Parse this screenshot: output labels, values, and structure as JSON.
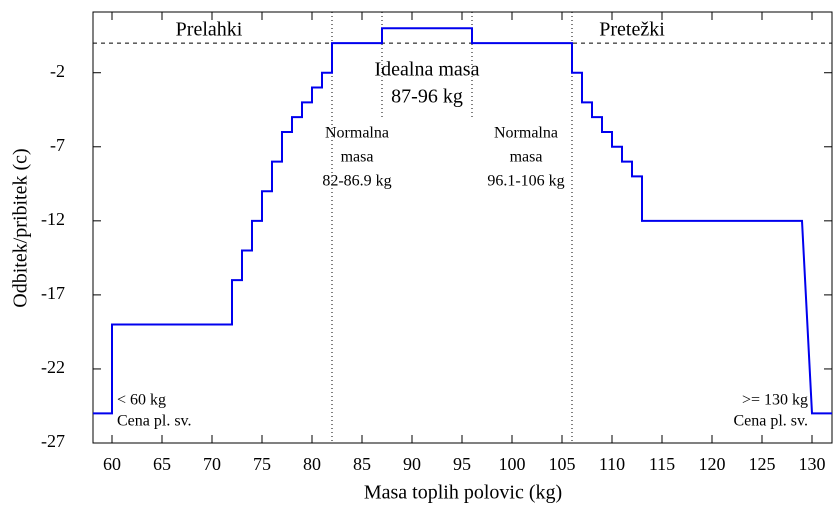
{
  "chart_data": {
    "type": "line",
    "x_label": "Masa toplih polovic (kg)",
    "y_label": "Odbitek/pribitek (c)",
    "series": [
      {
        "color": "#0000ee",
        "x": [
          58.1,
          60,
          60,
          72,
          72,
          73,
          73,
          74,
          74,
          75,
          75,
          76,
          76,
          77,
          77,
          78,
          78,
          79,
          79,
          80,
          80,
          81,
          81,
          82,
          82,
          87,
          87,
          96,
          96,
          106,
          106,
          107,
          107,
          108,
          108,
          109,
          109,
          110,
          110,
          111,
          111,
          112,
          112,
          113,
          113,
          129,
          130,
          132
        ],
        "values": [
          -25,
          -25,
          -19,
          -19,
          -16,
          -16,
          -14,
          -14,
          -12,
          -12,
          -10,
          -10,
          -8,
          -8,
          -6,
          -6,
          -5,
          -5,
          -4,
          -4,
          -3,
          -3,
          -2,
          -2,
          0,
          0,
          1,
          1,
          0,
          0,
          -2,
          -2,
          -4,
          -4,
          -5,
          -5,
          -6,
          -6,
          -7,
          -7,
          -8,
          -8,
          -9,
          -9,
          -12,
          -12,
          -25,
          -25
        ]
      }
    ],
    "xlim": [
      58.1,
      132
    ],
    "ylim": [
      -27,
      2.1
    ],
    "xticks": [
      60,
      65,
      70,
      75,
      80,
      85,
      90,
      95,
      100,
      105,
      110,
      115,
      120,
      125,
      130
    ],
    "yticks": [
      -2,
      -7,
      -12,
      -17,
      -22,
      -27
    ],
    "hline": 0,
    "vlines": [
      82,
      106
    ],
    "ideal_lines": [
      87,
      96
    ],
    "annotations": [
      [
        "Prelahki"
      ],
      [
        "Pretežki"
      ],
      [
        "Idealna masa",
        "87-96 kg"
      ],
      [
        "Normalna",
        "masa",
        "82-86.9 kg"
      ],
      [
        "Normalna",
        "masa",
        "96.1-106 kg"
      ],
      [
        "< 60 kg",
        "Cena pl. sv."
      ],
      [
        ">= 130 kg",
        "Cena pl. sv."
      ]
    ]
  }
}
